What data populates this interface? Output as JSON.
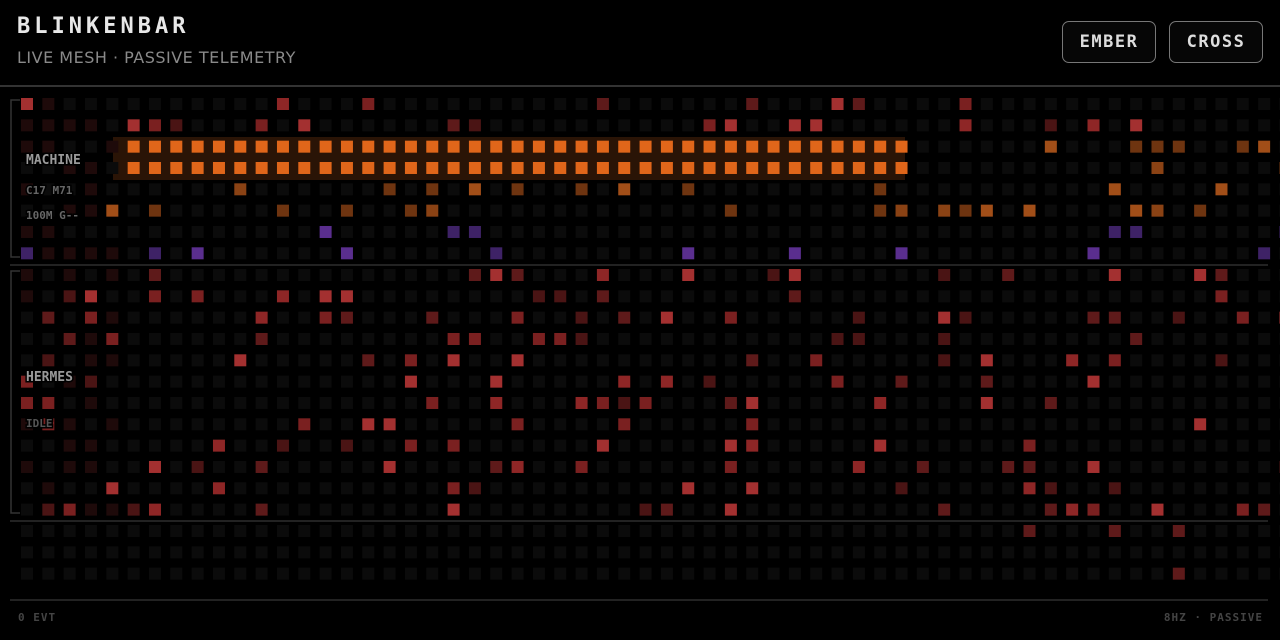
{
  "header": {
    "title": "BLINKENBAR",
    "subtitle": "LIVE MESH · PASSIVE TELEMETRY"
  },
  "buttons": [
    "EMBER",
    "CROSS"
  ],
  "panels": [
    {
      "label": "MACHINE",
      "lines": [
        "C17 M71",
        "100M G--"
      ]
    },
    {
      "label": "HERMES",
      "lines": [
        "IDLE"
      ]
    }
  ],
  "footer": {
    "left": "0 EVT",
    "right": "8HZ · PASSIVE"
  }
}
